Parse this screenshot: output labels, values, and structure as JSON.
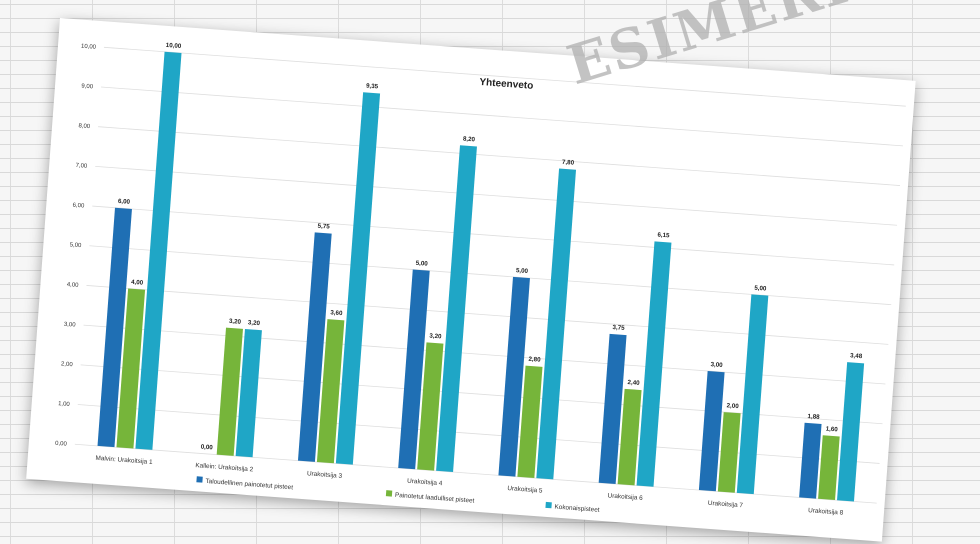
{
  "watermark_text": "ESIMERKKI",
  "chart_data": {
    "type": "bar",
    "title": "Yhteenveto",
    "ylim": [
      0,
      10
    ],
    "yticks": [
      "0,00",
      "1,00",
      "2,00",
      "3,00",
      "4,00",
      "5,00",
      "6,00",
      "7,00",
      "8,00",
      "9,00",
      "10,00"
    ],
    "categories": [
      "Malvin: Urakoitsija 1",
      "Kallein: Urakoitsija 2",
      "Urakoitsija 3",
      "Urakoitsija 4",
      "Urakoitsija 5",
      "Urakoitsija 6",
      "Urakoitsija 7",
      "Urakoitsija 8"
    ],
    "series": [
      {
        "name": "Taloudellinen painotetut pisteet",
        "color": "#1f6fb4",
        "values": [
          6.0,
          0.0,
          5.75,
          5.0,
          5.0,
          3.75,
          3.0,
          1.88
        ],
        "labels": [
          "6,00",
          "0,00",
          "5,75",
          "5,00",
          "5,00",
          "3,75",
          "3,00",
          "1,88"
        ]
      },
      {
        "name": "Painotetut laadulliset pisteet",
        "color": "#76b53a",
        "values": [
          4.0,
          3.2,
          3.6,
          3.2,
          2.8,
          2.4,
          2.0,
          1.6
        ],
        "labels": [
          "4,00",
          "3,20",
          "3,60",
          "3,20",
          "2,80",
          "2,40",
          "2,00",
          "1,60"
        ]
      },
      {
        "name": "Kokonaispisteet",
        "color": "#1fa6c6",
        "values": [
          10.0,
          3.2,
          9.35,
          8.2,
          7.8,
          6.15,
          5.0,
          3.48
        ],
        "labels": [
          "10,00",
          "3,20",
          "9,35",
          "8,20",
          "7,80",
          "6,15",
          "5,00",
          "3,48"
        ]
      }
    ],
    "grid": true,
    "legend_position": "bottom"
  }
}
